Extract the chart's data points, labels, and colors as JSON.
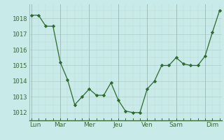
{
  "x_values": [
    0,
    1,
    2,
    3,
    4,
    5,
    6,
    7,
    8,
    9,
    10,
    11,
    12,
    13,
    14,
    15,
    16,
    17,
    18,
    19,
    20,
    21,
    22,
    23,
    24,
    25,
    26
  ],
  "y_values": [
    1018.2,
    1018.2,
    1017.5,
    1017.5,
    1015.2,
    1014.1,
    1012.5,
    1013.0,
    1013.5,
    1013.1,
    1013.1,
    1013.9,
    1012.8,
    1012.1,
    1012.0,
    1012.0,
    1013.5,
    1014.0,
    1015.0,
    1015.0,
    1015.5,
    1015.1,
    1015.0,
    1015.0,
    1015.6,
    1017.1,
    1018.5
  ],
  "x_tick_positions": [
    0.5,
    4,
    8,
    12,
    16,
    20,
    25
  ],
  "x_tick_labels": [
    "Lun",
    "Mar",
    "Mer",
    "Jeu",
    "Ven",
    "Sam",
    "Dim"
  ],
  "x_major_gridlines": [
    0,
    4,
    8,
    12,
    16,
    20,
    24
  ],
  "x_minor_gridlines": [
    1,
    2,
    3,
    5,
    6,
    7,
    9,
    10,
    11,
    13,
    14,
    15,
    17,
    18,
    19,
    21,
    22,
    23,
    25,
    26
  ],
  "x_separator_lines": [
    2,
    6,
    10,
    14,
    18,
    22
  ],
  "y_tick_positions": [
    1012,
    1013,
    1014,
    1015,
    1016,
    1017,
    1018
  ],
  "ylim": [
    1011.5,
    1018.9
  ],
  "xlim": [
    -0.3,
    26.3
  ],
  "line_color": "#2d6a2d",
  "marker_color": "#2d6a2d",
  "bg_color": "#c8eae8",
  "major_grid_color": "#b0ccc8",
  "minor_grid_color": "#c0d8d4",
  "separator_color": "#9ab8b4",
  "spine_color": "#3a6a3a",
  "tick_label_color": "#3a6a3a"
}
